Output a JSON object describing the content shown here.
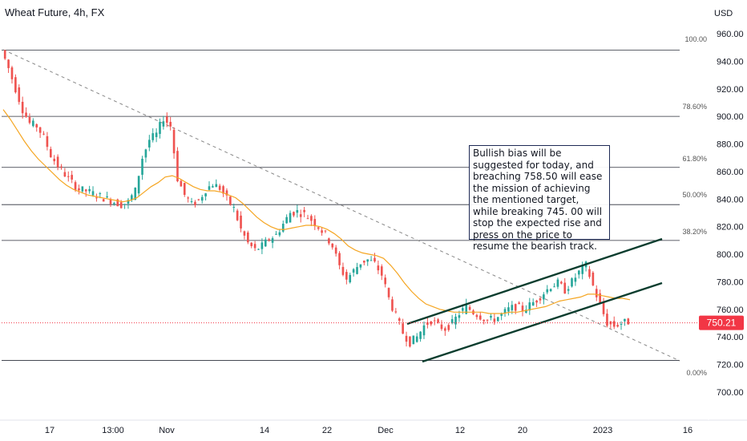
{
  "chart_title": "Wheat Future, 4h, FX",
  "axis": {
    "currency": "USD",
    "y_ticks": [
      "960.00",
      "940.00",
      "920.00",
      "900.00",
      "880.00",
      "860.00",
      "840.00",
      "820.00",
      "800.00",
      "780.00",
      "760.00",
      "740.00",
      "720.00",
      "700.00"
    ],
    "x_ticks": [
      "17",
      "13:00",
      "Nov",
      "14",
      "22",
      "Dec",
      "12",
      "20",
      "2023",
      "16"
    ],
    "current_price": "750.21"
  },
  "note_text": "Bullish bias will be suggested for today, and breaching 758.50 will ease the mission of achieving the mentioned target, while breaking 745. 00 will stop the expected rise and press on the price to resume the bearish track.",
  "fib_labels": [
    "100.00",
    "78.60%",
    "61.80%",
    "50.00%",
    "38.20%",
    "0.00%"
  ],
  "colors": {
    "up": "#26a69a",
    "down": "#ef5350",
    "ma": "#f5a623",
    "current": "#f23645",
    "channel": "#0b3d2e"
  },
  "chart_data": {
    "type": "candlestick",
    "title": "Wheat Future, 4h, FX",
    "ylabel": "USD",
    "ylim": [
      690,
      972
    ],
    "x_ticks": [
      "17",
      "13:00",
      "Nov",
      "14",
      "22",
      "Dec",
      "12",
      "20",
      "2023",
      "16"
    ],
    "y_ticks": [
      960,
      940,
      920,
      900,
      880,
      860,
      840,
      820,
      800,
      780,
      760,
      740,
      720,
      700
    ],
    "fibonacci_retracement": [
      {
        "label": "100.00",
        "price": 948
      },
      {
        "label": "78.60%",
        "price": 900
      },
      {
        "label": "61.80%",
        "price": 863
      },
      {
        "label": "50.00%",
        "price": 836
      },
      {
        "label": "38.20%",
        "price": 810
      },
      {
        "label": "0.00%",
        "price": 723
      }
    ],
    "current_price": 750.21,
    "price_path": [
      948,
      935,
      920,
      905,
      895,
      893,
      885,
      872,
      864,
      858,
      852,
      847,
      846,
      844,
      842,
      840,
      838,
      836,
      838,
      846,
      870,
      883,
      887,
      899,
      893,
      855,
      843,
      836,
      839,
      847,
      851,
      848,
      840,
      833,
      818,
      808,
      803,
      806,
      811,
      814,
      822,
      830,
      831,
      829,
      825,
      820,
      814,
      806,
      791,
      782,
      788,
      794,
      796,
      793,
      785,
      768,
      755,
      743,
      736,
      740,
      748,
      752,
      748,
      746,
      750,
      757,
      762,
      758,
      755,
      752,
      753,
      756,
      760,
      762,
      760,
      763,
      767,
      772,
      777,
      779,
      774,
      780,
      787,
      792,
      777,
      763,
      750,
      748,
      750,
      751
    ],
    "moving_average_path": [
      905,
      898,
      890,
      882,
      875,
      869,
      864,
      859,
      854,
      850,
      847,
      845,
      843,
      842,
      841,
      840,
      839,
      838,
      839,
      841,
      845,
      849,
      852,
      856,
      857,
      855,
      852,
      849,
      847,
      846,
      846,
      845,
      843,
      841,
      837,
      832,
      827,
      823,
      820,
      818,
      818,
      819,
      820,
      821,
      821,
      820,
      818,
      815,
      811,
      806,
      803,
      801,
      800,
      799,
      797,
      792,
      786,
      779,
      773,
      768,
      764,
      762,
      760,
      759,
      758,
      758,
      758,
      758,
      758,
      757,
      757,
      757,
      758,
      758,
      759,
      760,
      761,
      762,
      764,
      766,
      767,
      768,
      769,
      771,
      771,
      770,
      769,
      768,
      768,
      767
    ],
    "annotations": {
      "channel_lower": [
        [
          "Dec 5",
          721
        ],
        [
          "2023 +10",
          779
        ]
      ],
      "channel_upper": [
        [
          "Dec 5",
          752
        ],
        [
          "2023 +10",
          811
        ]
      ],
      "trendline_dashed": [
        [
          "Oct 11",
          948
        ],
        [
          "2023 +16",
          723
        ]
      ]
    }
  }
}
